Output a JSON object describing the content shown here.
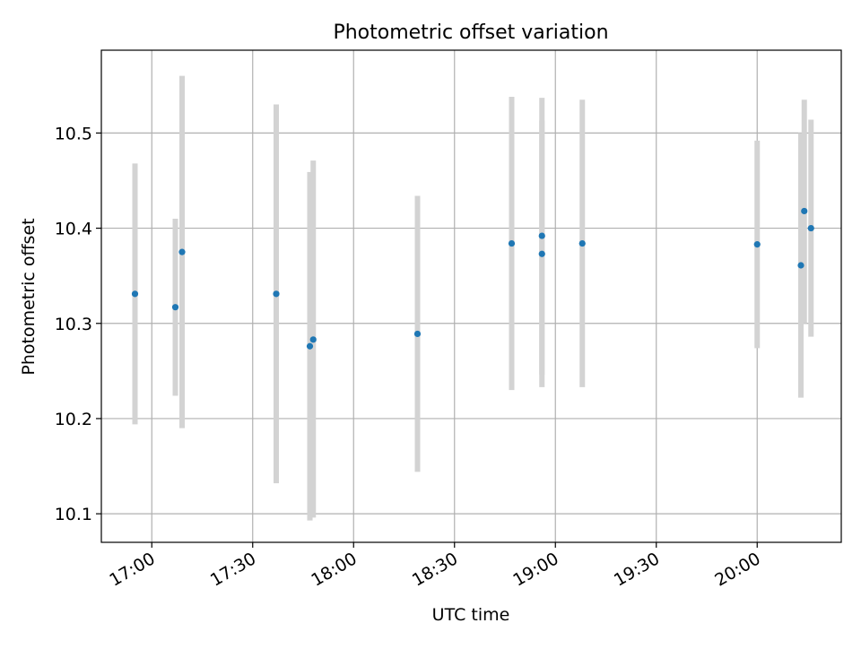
{
  "chart_data": {
    "type": "scatter",
    "title": "Photometric offset variation",
    "xlabel": "UTC time",
    "ylabel": "Photometric offset",
    "xlim": [
      "16:45",
      "20:25"
    ],
    "ylim": [
      10.07,
      10.587
    ],
    "x_ticks": [
      "17:00",
      "17:30",
      "18:00",
      "18:30",
      "19:00",
      "19:30",
      "20:00"
    ],
    "y_ticks": [
      "10.1",
      "10.2",
      "10.3",
      "10.4",
      "10.5"
    ],
    "grid": true,
    "colors": {
      "marker": "#1f77b4",
      "errorbar": "#d3d3d3",
      "grid": "#b0b0b0"
    },
    "series": [
      {
        "points": [
          {
            "x": "16:55",
            "y": 10.331,
            "yerr_low": 10.194,
            "yerr_high": 10.468
          },
          {
            "x": "17:07",
            "y": 10.317,
            "yerr_low": 10.224,
            "yerr_high": 10.41
          },
          {
            "x": "17:09",
            "y": 10.375,
            "yerr_low": 10.19,
            "yerr_high": 10.56
          },
          {
            "x": "17:37",
            "y": 10.331,
            "yerr_low": 10.132,
            "yerr_high": 10.53
          },
          {
            "x": "17:47",
            "y": 10.276,
            "yerr_low": 10.093,
            "yerr_high": 10.459
          },
          {
            "x": "17:48",
            "y": 10.283,
            "yerr_low": 10.096,
            "yerr_high": 10.471
          },
          {
            "x": "18:19",
            "y": 10.289,
            "yerr_low": 10.144,
            "yerr_high": 10.434
          },
          {
            "x": "18:47",
            "y": 10.384,
            "yerr_low": 10.23,
            "yerr_high": 10.538
          },
          {
            "x": "18:56",
            "y": 10.392,
            "yerr_low": 10.246,
            "yerr_high": 10.537
          },
          {
            "x": "18:56",
            "y": 10.373,
            "yerr_low": 10.233,
            "yerr_high": 10.513
          },
          {
            "x": "19:08",
            "y": 10.384,
            "yerr_low": 10.233,
            "yerr_high": 10.535
          },
          {
            "x": "20:00",
            "y": 10.383,
            "yerr_low": 10.274,
            "yerr_high": 10.492
          },
          {
            "x": "20:13",
            "y": 10.361,
            "yerr_low": 10.222,
            "yerr_high": 10.5
          },
          {
            "x": "20:14",
            "y": 10.418,
            "yerr_low": 10.3,
            "yerr_high": 10.535
          },
          {
            "x": "20:16",
            "y": 10.4,
            "yerr_low": 10.286,
            "yerr_high": 10.514
          }
        ]
      }
    ]
  }
}
